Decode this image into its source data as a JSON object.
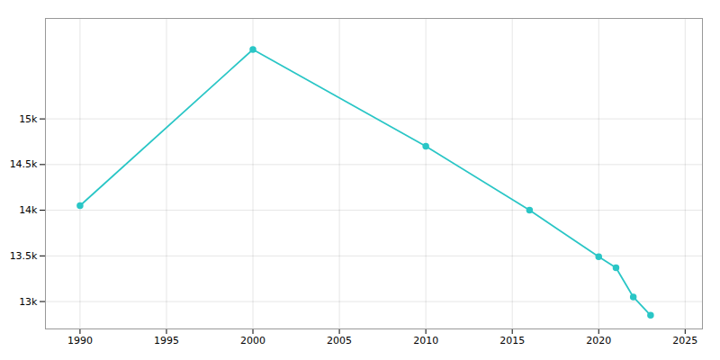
{
  "chart_data": {
    "type": "line",
    "x": [
      1990,
      2000,
      2010,
      2016,
      2020,
      2021,
      2022,
      2023
    ],
    "values": [
      14050,
      15760,
      14700,
      14000,
      13490,
      13370,
      13050,
      12850
    ],
    "color": "#2ac6c6",
    "marker": "circle",
    "xlim": [
      1988,
      2026
    ],
    "ylim": [
      12700,
      16100
    ],
    "xticks": [
      1990,
      1995,
      2000,
      2005,
      2010,
      2015,
      2020,
      2025
    ],
    "yticks": [
      {
        "value": 13000,
        "label": "13k"
      },
      {
        "value": 13500,
        "label": "13.5k"
      },
      {
        "value": 14000,
        "label": "14k"
      },
      {
        "value": 14500,
        "label": "14.5k"
      },
      {
        "value": 15000,
        "label": "15k"
      }
    ],
    "grid": true
  }
}
